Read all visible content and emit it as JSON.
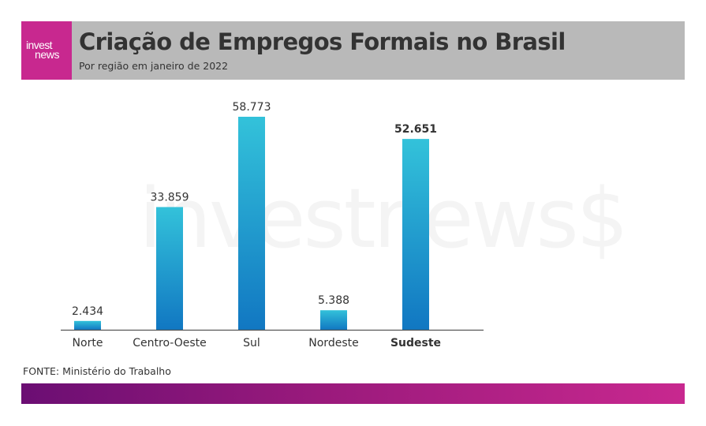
{
  "header": {
    "logo_line1": "invest",
    "logo_line2": "news",
    "colors": {
      "banner": "#b9b9b9",
      "logo_bg": "#c8288f"
    }
  },
  "footer": {
    "source": "FONTE: Ministério do Trabalho",
    "band_gradient": [
      "#6b0e73",
      "#c8288f"
    ]
  },
  "watermark": "investnews$",
  "chart_data": {
    "type": "bar",
    "title": "Criação de Empregos Formais no Brasil",
    "subtitle": "Por região em janeiro de 2022",
    "categories": [
      "Norte",
      "Centro-Oeste",
      "Sul",
      "Nordeste",
      "Sudeste"
    ],
    "values": [
      2434,
      33859,
      58773,
      5388,
      52651
    ],
    "value_labels": [
      "2.434",
      "33.859",
      "58.773",
      "5.388",
      "52.651"
    ],
    "highlight": "Sudeste",
    "xlabel": "",
    "ylabel": "",
    "ylim": [
      0,
      60000
    ],
    "grid": false,
    "legend": "none",
    "bar_colors": {
      "top": "#33c2da",
      "bottom": "#1177c2"
    }
  }
}
